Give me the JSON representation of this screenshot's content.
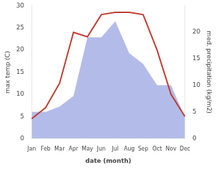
{
  "chart_data": {
    "type": "line",
    "categories": [
      "Jan",
      "Feb",
      "Mar",
      "Apr",
      "May",
      "Jun",
      "Jul",
      "Aug",
      "Sep",
      "Oct",
      "Nov",
      "Dec"
    ],
    "series": [
      {
        "type": "area",
        "color": "#b3bce8",
        "axis": "y2",
        "values": [
          5.0,
          5.0,
          6.0,
          8.0,
          19.0,
          19.0,
          22.0,
          16.0,
          14.0,
          10.0,
          10.0,
          4.0
        ]
      },
      {
        "type": "line",
        "color": "#c0392b",
        "values": [
          4.5,
          7.0,
          12.5,
          24.0,
          23.0,
          28.0,
          28.5,
          28.5,
          28.0,
          20.0,
          10.0,
          5.0
        ]
      }
    ],
    "xlabel": "date (month)",
    "ylabel": "max temp (C)",
    "y2label": "med. precipitation (kg/m2)",
    "ylim": [
      0,
      30
    ],
    "yticks": [
      0,
      5,
      10,
      15,
      20,
      25,
      30
    ],
    "y2lim": [
      0,
      24.9
    ],
    "y2ticks": [
      0,
      5,
      10,
      15,
      20
    ],
    "grid": false
  }
}
